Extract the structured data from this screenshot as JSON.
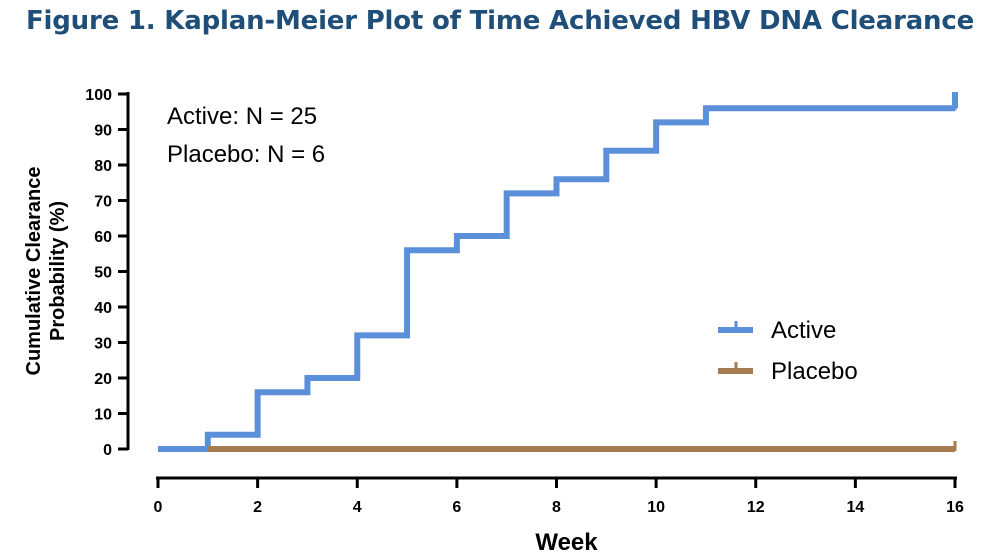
{
  "title": "Figure 1. Kaplan-Meier Plot of Time Achieved HBV DNA Clearance",
  "chart_data": {
    "type": "line",
    "step": true,
    "xlabel": "Week",
    "ylabel": [
      "Cumulative Clearance",
      "Probability (%)"
    ],
    "xlim": [
      0,
      16
    ],
    "ylim": [
      0,
      100
    ],
    "xticks": [
      0,
      2,
      4,
      6,
      8,
      10,
      12,
      14,
      16
    ],
    "yticks": [
      0,
      10,
      20,
      30,
      40,
      50,
      60,
      70,
      80,
      90,
      100
    ],
    "grid": false,
    "legend_position": "lower-right",
    "annotations": [
      "Active: N = 25",
      "Placebo: N = 6"
    ],
    "series": [
      {
        "name": "Active",
        "color": "#5b8fd9",
        "x": [
          0,
          1,
          2,
          3,
          4,
          5,
          6,
          7,
          8,
          9,
          10,
          11,
          16
        ],
        "y": [
          0,
          4,
          16,
          20,
          32,
          56,
          60,
          72,
          76,
          84,
          92,
          96,
          96
        ],
        "censor_x": [
          16
        ],
        "end_jump_to": 100
      },
      {
        "name": "Placebo",
        "color": "#a67c52",
        "x": [
          1,
          16
        ],
        "y": [
          0,
          0
        ],
        "censor_x": [
          16
        ]
      }
    ]
  }
}
